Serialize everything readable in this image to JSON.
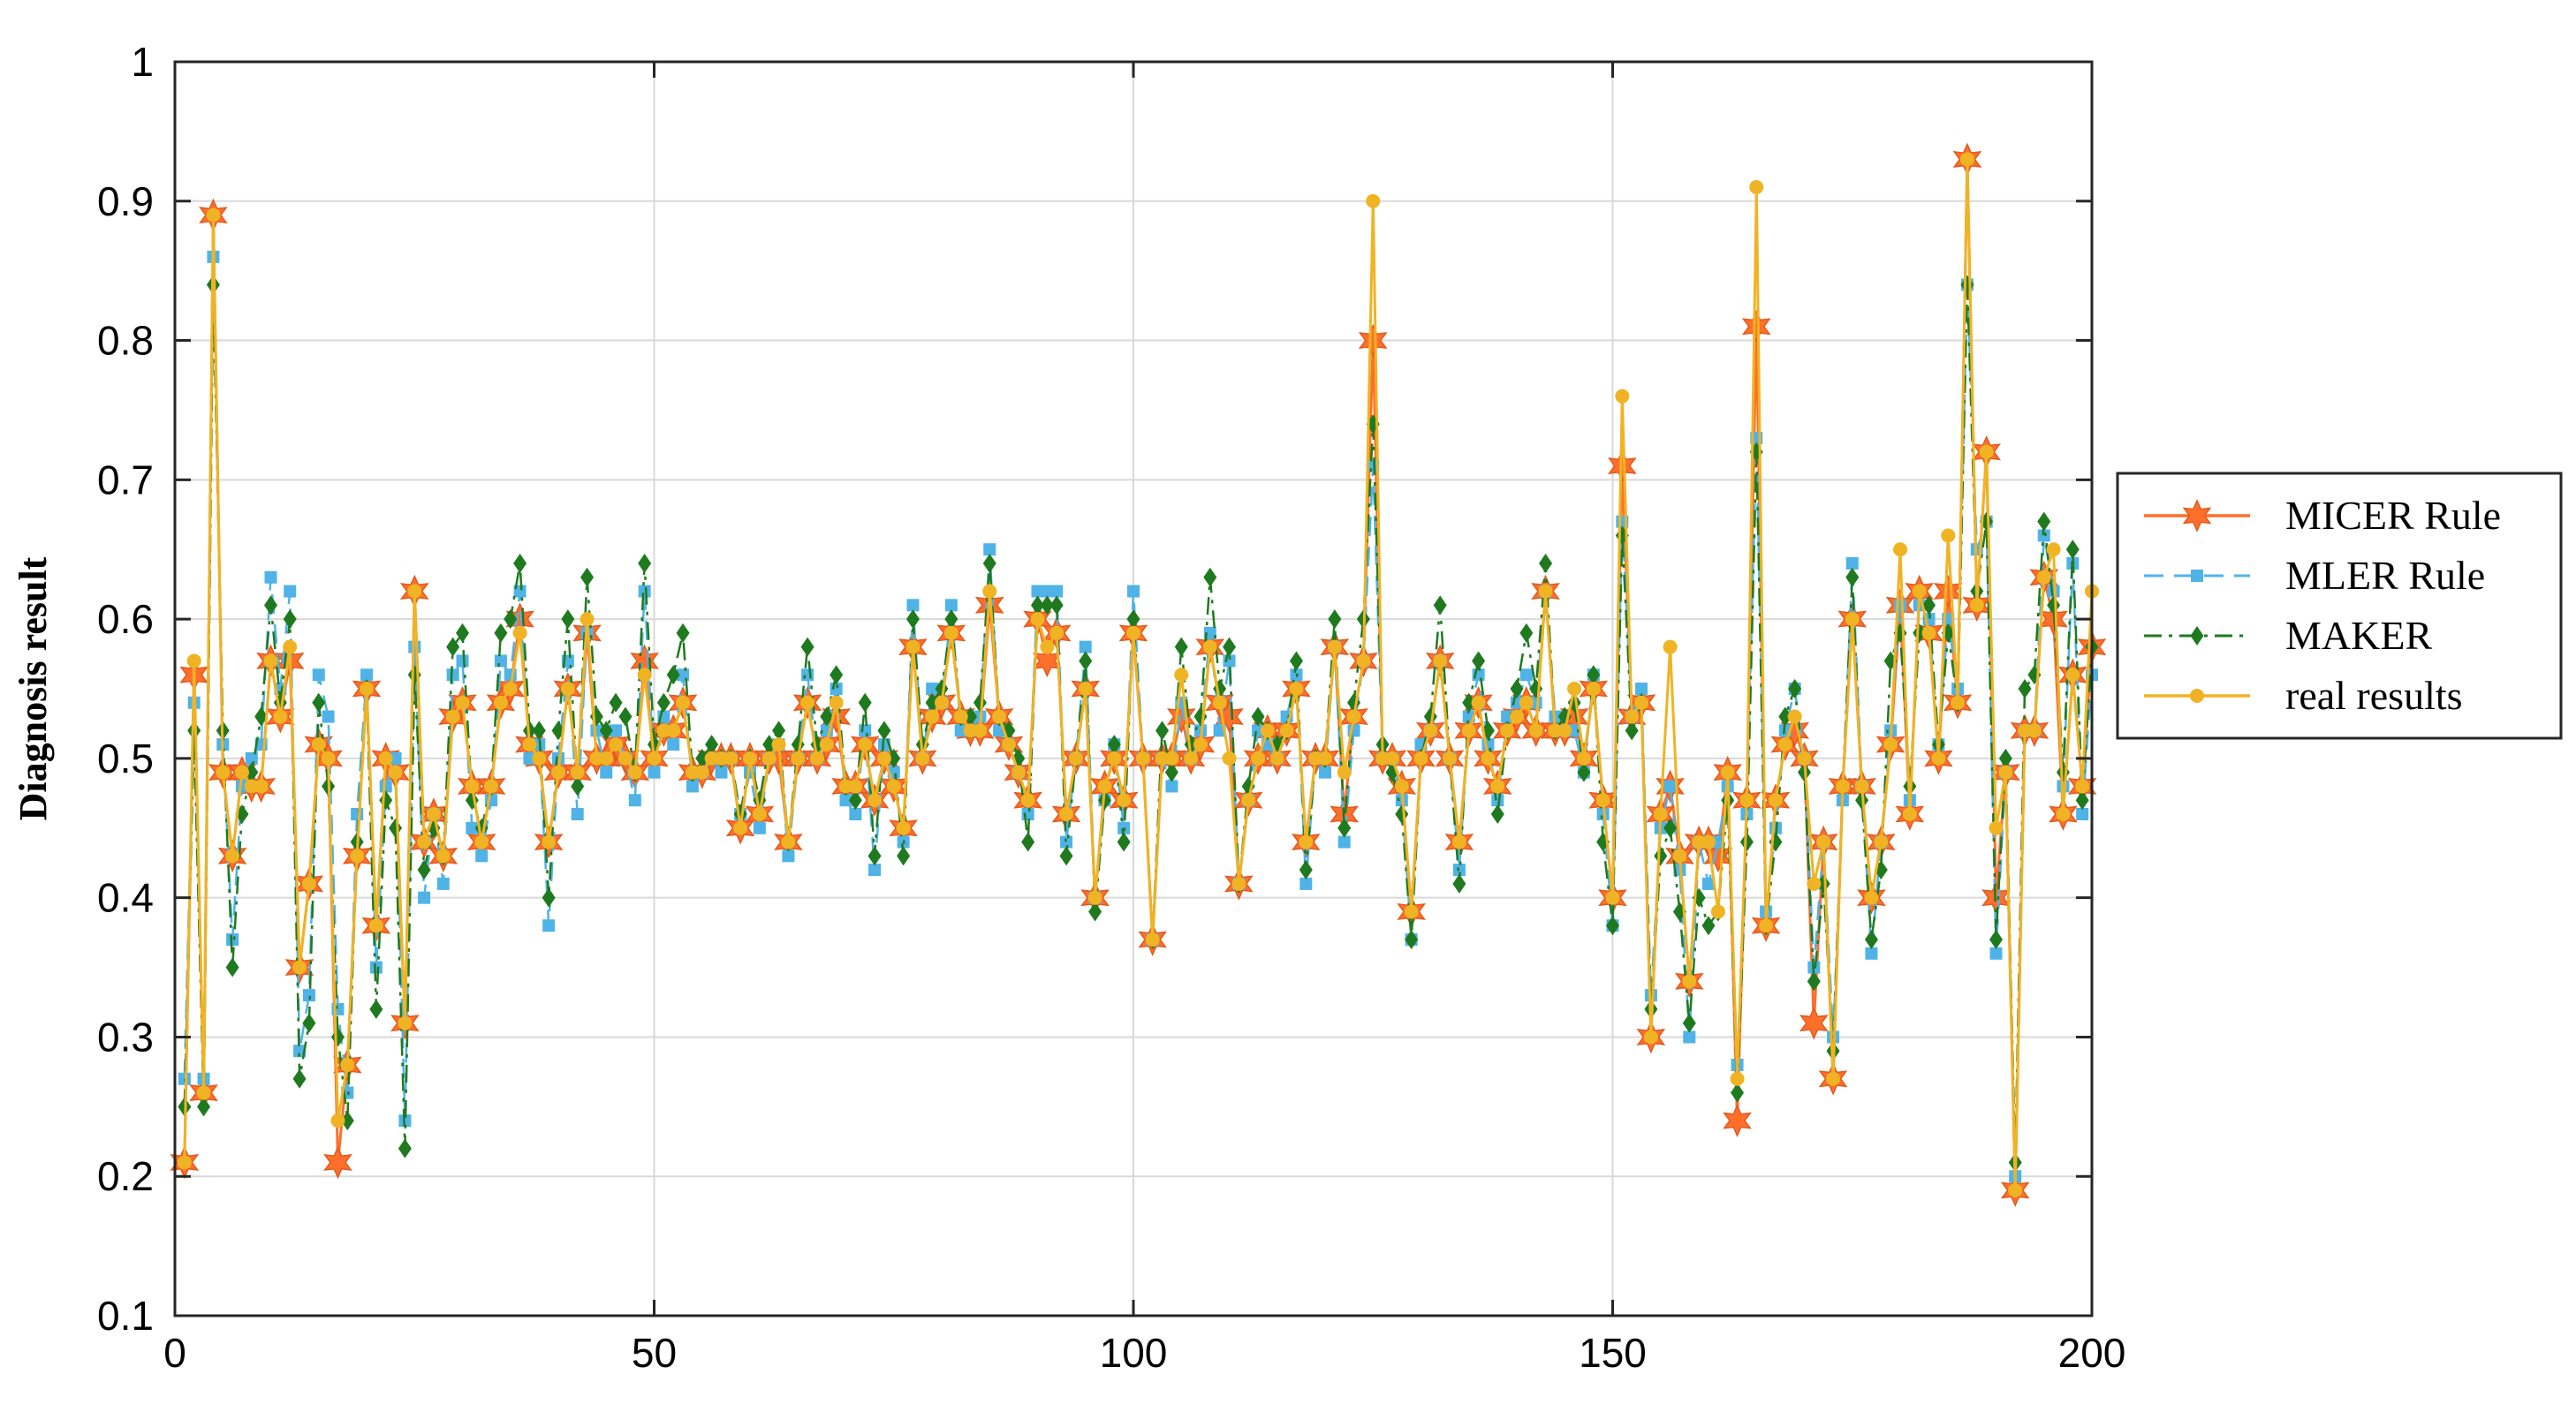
{
  "chart_data": {
    "type": "line",
    "title": "",
    "xlabel": "",
    "ylabel": "Diagnosis result",
    "xlim": [
      0,
      200
    ],
    "ylim": [
      0.1,
      1
    ],
    "xticks": [
      0,
      50,
      100,
      150,
      200
    ],
    "yticks": [
      0.1,
      0.2,
      0.3,
      0.4,
      0.5,
      0.6,
      0.7,
      0.8,
      0.9,
      1
    ],
    "xtick_labels": [
      "0",
      "50",
      "100",
      "150",
      "200"
    ],
    "ytick_labels": [
      "0.1",
      "0.2",
      "0.3",
      "0.4",
      "0.5",
      "0.6",
      "0.7",
      "0.8",
      "0.9",
      "1"
    ],
    "grid": true,
    "legend_position": "right",
    "x": [
      1,
      2,
      3,
      4,
      5,
      6,
      7,
      8,
      9,
      10,
      11,
      12,
      13,
      14,
      15,
      16,
      17,
      18,
      19,
      20,
      21,
      22,
      23,
      24,
      25,
      26,
      27,
      28,
      29,
      30,
      31,
      32,
      33,
      34,
      35,
      36,
      37,
      38,
      39,
      40,
      41,
      42,
      43,
      44,
      45,
      46,
      47,
      48,
      49,
      50,
      51,
      52,
      53,
      54,
      55,
      56,
      57,
      58,
      59,
      60,
      61,
      62,
      63,
      64,
      65,
      66,
      67,
      68,
      69,
      70,
      71,
      72,
      73,
      74,
      75,
      76,
      77,
      78,
      79,
      80,
      81,
      82,
      83,
      84,
      85,
      86,
      87,
      88,
      89,
      90,
      91,
      92,
      93,
      94,
      95,
      96,
      97,
      98,
      99,
      100,
      101,
      102,
      103,
      104,
      105,
      106,
      107,
      108,
      109,
      110,
      111,
      112,
      113,
      114,
      115,
      116,
      117,
      118,
      119,
      120,
      121,
      122,
      123,
      124,
      125,
      126,
      127,
      128,
      129,
      130,
      131,
      132,
      133,
      134,
      135,
      136,
      137,
      138,
      139,
      140,
      141,
      142,
      143,
      144,
      145,
      146,
      147,
      148,
      149,
      150,
      151,
      152,
      153,
      154,
      155,
      156,
      157,
      158,
      159,
      160,
      161,
      162,
      163,
      164,
      165,
      166,
      167,
      168,
      169,
      170,
      171,
      172,
      173,
      174,
      175,
      176,
      177,
      178,
      179,
      180,
      181,
      182,
      183,
      184,
      185,
      186,
      187,
      188,
      189,
      190,
      191,
      192,
      193,
      194,
      195,
      196,
      197,
      198,
      199,
      200
    ],
    "series": [
      {
        "name": "MICER Rule",
        "color": "#ff6f2c",
        "marker": "star",
        "line": "solid",
        "values": [
          0.21,
          0.56,
          0.26,
          0.89,
          0.49,
          0.43,
          0.49,
          0.48,
          0.48,
          0.57,
          0.53,
          0.57,
          0.35,
          0.41,
          0.51,
          0.5,
          0.21,
          0.28,
          0.43,
          0.55,
          0.38,
          0.5,
          0.49,
          0.31,
          0.62,
          0.44,
          0.46,
          0.43,
          0.53,
          0.54,
          0.48,
          0.44,
          0.48,
          0.54,
          0.55,
          0.6,
          0.51,
          0.5,
          0.44,
          0.49,
          0.55,
          0.49,
          0.59,
          0.5,
          0.5,
          0.51,
          0.5,
          0.49,
          0.57,
          0.5,
          0.52,
          0.52,
          0.54,
          0.49,
          0.49,
          0.5,
          0.5,
          0.5,
          0.45,
          0.5,
          0.46,
          0.5,
          0.5,
          0.44,
          0.5,
          0.54,
          0.5,
          0.51,
          0.53,
          0.48,
          0.48,
          0.51,
          0.47,
          0.5,
          0.48,
          0.45,
          0.58,
          0.5,
          0.53,
          0.54,
          0.59,
          0.53,
          0.52,
          0.52,
          0.61,
          0.53,
          0.51,
          0.49,
          0.47,
          0.6,
          0.57,
          0.59,
          0.46,
          0.5,
          0.55,
          0.4,
          0.48,
          0.5,
          0.47,
          0.59,
          0.5,
          0.37,
          0.5,
          0.5,
          0.53,
          0.5,
          0.51,
          0.58,
          0.54,
          0.53,
          0.41,
          0.47,
          0.5,
          0.52,
          0.5,
          0.52,
          0.55,
          0.44,
          0.5,
          0.5,
          0.58,
          0.46,
          0.53,
          0.57,
          0.8,
          0.5,
          0.5,
          0.48,
          0.39,
          0.5,
          0.52,
          0.57,
          0.5,
          0.44,
          0.52,
          0.54,
          0.5,
          0.48,
          0.52,
          0.53,
          0.54,
          0.52,
          0.62,
          0.52,
          0.52,
          0.53,
          0.5,
          0.55,
          0.47,
          0.4,
          0.71,
          0.53,
          0.54,
          0.3,
          0.46,
          0.48,
          0.43,
          0.34,
          0.44,
          0.44,
          0.43,
          0.49,
          0.24,
          0.47,
          0.81,
          0.38,
          0.47,
          0.51,
          0.52,
          0.5,
          0.31,
          0.44,
          0.27,
          0.48,
          0.6,
          0.48,
          0.4,
          0.44,
          0.51,
          0.61,
          0.46,
          0.62,
          0.59,
          0.5,
          0.62,
          0.54,
          0.93,
          0.61,
          0.72,
          0.4,
          0.49,
          0.19,
          0.52,
          0.52,
          0.63,
          0.6,
          0.46,
          0.56,
          0.48,
          0.58
        ]
      },
      {
        "name": "MLER Rule",
        "color": "#4fb3e8",
        "marker": "square",
        "line": "dashed",
        "values": [
          0.27,
          0.54,
          0.27,
          0.86,
          0.51,
          0.37,
          0.48,
          0.5,
          0.51,
          0.63,
          0.55,
          0.62,
          0.29,
          0.33,
          0.56,
          0.53,
          0.32,
          0.26,
          0.46,
          0.56,
          0.35,
          0.48,
          0.5,
          0.24,
          0.58,
          0.4,
          0.46,
          0.41,
          0.56,
          0.57,
          0.45,
          0.43,
          0.47,
          0.57,
          0.56,
          0.62,
          0.5,
          0.51,
          0.38,
          0.5,
          0.57,
          0.46,
          0.59,
          0.52,
          0.49,
          0.52,
          0.5,
          0.47,
          0.62,
          0.49,
          0.53,
          0.51,
          0.56,
          0.48,
          0.49,
          0.5,
          0.49,
          0.5,
          0.46,
          0.49,
          0.45,
          0.5,
          0.51,
          0.43,
          0.5,
          0.56,
          0.5,
          0.52,
          0.55,
          0.47,
          0.46,
          0.52,
          0.42,
          0.51,
          0.49,
          0.44,
          0.61,
          0.5,
          0.55,
          0.54,
          0.61,
          0.52,
          0.52,
          0.53,
          0.65,
          0.52,
          0.51,
          0.49,
          0.46,
          0.62,
          0.62,
          0.62,
          0.44,
          0.5,
          0.58,
          0.4,
          0.47,
          0.51,
          0.45,
          0.62,
          0.5,
          0.37,
          0.5,
          0.48,
          0.54,
          0.5,
          0.52,
          0.59,
          0.52,
          0.57,
          0.41,
          0.47,
          0.52,
          0.51,
          0.5,
          0.53,
          0.56,
          0.41,
          0.5,
          0.49,
          0.58,
          0.44,
          0.52,
          0.57,
          0.71,
          0.5,
          0.5,
          0.47,
          0.37,
          0.51,
          0.52,
          0.57,
          0.5,
          0.42,
          0.53,
          0.56,
          0.51,
          0.47,
          0.53,
          0.54,
          0.56,
          0.54,
          0.62,
          0.53,
          0.52,
          0.52,
          0.49,
          0.56,
          0.46,
          0.38,
          0.67,
          0.53,
          0.55,
          0.33,
          0.45,
          0.48,
          0.42,
          0.3,
          0.44,
          0.41,
          0.44,
          0.48,
          0.28,
          0.46,
          0.73,
          0.39,
          0.45,
          0.52,
          0.55,
          0.5,
          0.35,
          0.44,
          0.3,
          0.47,
          0.64,
          0.48,
          0.36,
          0.44,
          0.52,
          0.61,
          0.47,
          0.61,
          0.6,
          0.51,
          0.6,
          0.55,
          0.84,
          0.65,
          0.67,
          0.36,
          0.49,
          0.2,
          0.52,
          0.52,
          0.66,
          0.62,
          0.48,
          0.64,
          0.46,
          0.56
        ]
      },
      {
        "name": "MAKER",
        "color": "#1f7a1f",
        "marker": "diamond",
        "line": "dashdot",
        "values": [
          0.25,
          0.52,
          0.25,
          0.84,
          0.52,
          0.35,
          0.46,
          0.49,
          0.53,
          0.61,
          0.54,
          0.6,
          0.27,
          0.31,
          0.54,
          0.48,
          0.3,
          0.24,
          0.44,
          0.55,
          0.32,
          0.47,
          0.45,
          0.22,
          0.56,
          0.42,
          0.45,
          0.43,
          0.58,
          0.59,
          0.47,
          0.45,
          0.48,
          0.59,
          0.6,
          0.64,
          0.52,
          0.52,
          0.4,
          0.52,
          0.6,
          0.48,
          0.63,
          0.53,
          0.52,
          0.54,
          0.53,
          0.49,
          0.64,
          0.51,
          0.54,
          0.56,
          0.59,
          0.49,
          0.5,
          0.51,
          0.5,
          0.5,
          0.46,
          0.5,
          0.47,
          0.51,
          0.52,
          0.44,
          0.51,
          0.58,
          0.51,
          0.53,
          0.56,
          0.48,
          0.47,
          0.54,
          0.43,
          0.52,
          0.5,
          0.43,
          0.6,
          0.51,
          0.54,
          0.55,
          0.6,
          0.53,
          0.53,
          0.54,
          0.64,
          0.53,
          0.52,
          0.5,
          0.44,
          0.61,
          0.61,
          0.61,
          0.43,
          0.5,
          0.57,
          0.39,
          0.47,
          0.51,
          0.44,
          0.6,
          0.5,
          0.37,
          0.52,
          0.49,
          0.58,
          0.51,
          0.53,
          0.63,
          0.55,
          0.58,
          0.41,
          0.48,
          0.53,
          0.52,
          0.51,
          0.52,
          0.57,
          0.42,
          0.5,
          0.5,
          0.6,
          0.45,
          0.54,
          0.6,
          0.74,
          0.51,
          0.49,
          0.46,
          0.37,
          0.5,
          0.53,
          0.61,
          0.5,
          0.41,
          0.54,
          0.57,
          0.52,
          0.46,
          0.52,
          0.55,
          0.59,
          0.55,
          0.64,
          0.52,
          0.53,
          0.54,
          0.49,
          0.56,
          0.44,
          0.38,
          0.66,
          0.52,
          0.54,
          0.32,
          0.43,
          0.45,
          0.39,
          0.31,
          0.4,
          0.38,
          0.39,
          0.47,
          0.26,
          0.44,
          0.72,
          0.38,
          0.44,
          0.53,
          0.55,
          0.49,
          0.34,
          0.41,
          0.29,
          0.48,
          0.63,
          0.47,
          0.37,
          0.42,
          0.57,
          0.59,
          0.48,
          0.59,
          0.61,
          0.51,
          0.59,
          0.54,
          0.84,
          0.62,
          0.67,
          0.37,
          0.5,
          0.21,
          0.55,
          0.56,
          0.67,
          0.61,
          0.49,
          0.65,
          0.47,
          0.58
        ]
      },
      {
        "name": "real results",
        "color": "#f0b323",
        "marker": "circle",
        "line": "solid",
        "values": [
          0.21,
          0.57,
          0.26,
          0.89,
          0.49,
          0.43,
          0.49,
          0.48,
          0.48,
          0.57,
          0.53,
          0.58,
          0.35,
          0.41,
          0.51,
          0.5,
          0.24,
          0.28,
          0.43,
          0.55,
          0.38,
          0.5,
          0.49,
          0.31,
          0.62,
          0.44,
          0.46,
          0.43,
          0.53,
          0.54,
          0.48,
          0.44,
          0.48,
          0.54,
          0.55,
          0.59,
          0.51,
          0.5,
          0.44,
          0.49,
          0.55,
          0.49,
          0.6,
          0.5,
          0.5,
          0.51,
          0.5,
          0.49,
          0.56,
          0.5,
          0.52,
          0.52,
          0.54,
          0.49,
          0.49,
          0.5,
          0.5,
          0.5,
          0.45,
          0.5,
          0.46,
          0.5,
          0.51,
          0.44,
          0.5,
          0.54,
          0.5,
          0.51,
          0.54,
          0.48,
          0.48,
          0.51,
          0.47,
          0.5,
          0.48,
          0.45,
          0.58,
          0.5,
          0.53,
          0.54,
          0.59,
          0.53,
          0.52,
          0.52,
          0.62,
          0.53,
          0.51,
          0.49,
          0.47,
          0.6,
          0.58,
          0.59,
          0.46,
          0.5,
          0.55,
          0.4,
          0.48,
          0.5,
          0.47,
          0.59,
          0.5,
          0.37,
          0.5,
          0.5,
          0.56,
          0.5,
          0.51,
          0.58,
          0.54,
          0.5,
          0.41,
          0.47,
          0.5,
          0.52,
          0.5,
          0.52,
          0.55,
          0.44,
          0.5,
          0.5,
          0.58,
          0.49,
          0.53,
          0.57,
          0.9,
          0.5,
          0.5,
          0.48,
          0.39,
          0.5,
          0.52,
          0.57,
          0.5,
          0.44,
          0.52,
          0.54,
          0.5,
          0.48,
          0.52,
          0.53,
          0.54,
          0.52,
          0.62,
          0.52,
          0.52,
          0.55,
          0.5,
          0.55,
          0.47,
          0.4,
          0.76,
          0.53,
          0.54,
          0.3,
          0.46,
          0.58,
          0.43,
          0.34,
          0.44,
          0.44,
          0.39,
          0.49,
          0.27,
          0.47,
          0.91,
          0.38,
          0.47,
          0.51,
          0.53,
          0.5,
          0.41,
          0.44,
          0.27,
          0.48,
          0.6,
          0.48,
          0.4,
          0.44,
          0.51,
          0.65,
          0.46,
          0.62,
          0.59,
          0.5,
          0.66,
          0.54,
          0.93,
          0.61,
          0.72,
          0.45,
          0.49,
          0.19,
          0.52,
          0.52,
          0.63,
          0.65,
          0.46,
          0.56,
          0.48,
          0.62
        ]
      }
    ]
  }
}
